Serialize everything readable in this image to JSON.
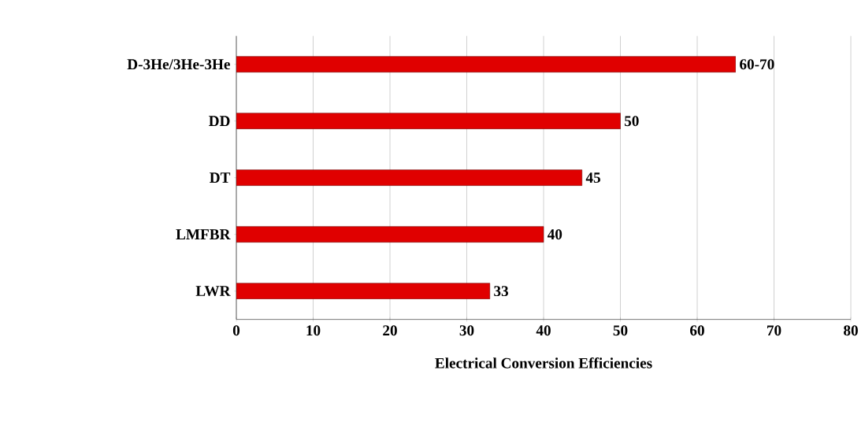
{
  "chart_data": {
    "type": "bar",
    "orientation": "horizontal",
    "xlabel": "Electrical Conversion Efficiencies",
    "categories": [
      "D-3He/3He-3He",
      "DD",
      "DT",
      "LMFBR",
      "LWR"
    ],
    "values": [
      65,
      50,
      45,
      40,
      33
    ],
    "value_labels": [
      "60-70",
      "50",
      "45",
      "40",
      "33"
    ],
    "color": "#e00000",
    "xlim": [
      0,
      80
    ],
    "xticks": [
      0,
      10,
      20,
      30,
      40,
      50,
      60,
      70,
      80
    ],
    "grid": "x"
  }
}
